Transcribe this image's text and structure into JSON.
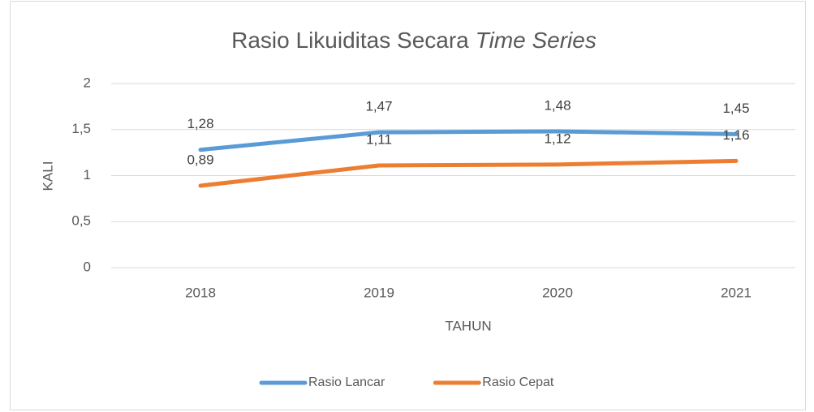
{
  "chart_data": {
    "type": "line",
    "title": {
      "text": "Rasio Likuiditas Secara",
      "italic": "Time Series"
    },
    "x_label": "TAHUN",
    "y_label": "KALI",
    "categories": [
      "2018",
      "2019",
      "2020",
      "2021"
    ],
    "series": [
      {
        "name": "Rasio Lancar",
        "color": "#5b9bd5",
        "values": [
          1.28,
          1.47,
          1.48,
          1.45
        ],
        "value_labels": [
          "1,28",
          "1,47",
          "1,48",
          "1,45"
        ]
      },
      {
        "name": "Rasio Cepat",
        "color": "#ed7d31",
        "values": [
          0.89,
          1.11,
          1.12,
          1.16
        ],
        "value_labels": [
          "0,89",
          "1,11",
          "1,12",
          "1,16"
        ]
      }
    ],
    "ylim": [
      0,
      2
    ],
    "yticks": [
      0,
      {
        "value": 0.5,
        "label": "0,5"
      },
      1,
      {
        "value": 1.5,
        "label": "1,5"
      },
      2
    ],
    "grid": true,
    "legend": "bottom"
  }
}
